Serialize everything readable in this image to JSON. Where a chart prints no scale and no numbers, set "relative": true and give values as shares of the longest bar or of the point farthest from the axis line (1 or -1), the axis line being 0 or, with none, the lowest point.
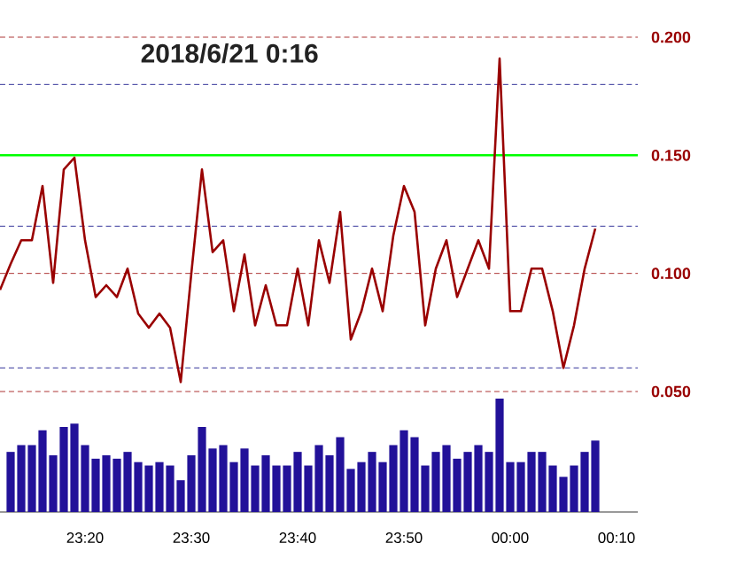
{
  "chart_data": [
    {
      "type": "line",
      "title": "2018/6/21   0:16",
      "color": "#990000",
      "x": [
        "2018-06-20T23:12",
        "2018-06-20T23:13",
        "2018-06-20T23:14",
        "2018-06-20T23:15",
        "2018-06-20T23:16",
        "2018-06-20T23:17",
        "2018-06-20T23:18",
        "2018-06-20T23:19",
        "2018-06-20T23:20",
        "2018-06-20T23:21",
        "2018-06-20T23:22",
        "2018-06-20T23:23",
        "2018-06-20T23:24",
        "2018-06-20T23:25",
        "2018-06-20T23:26",
        "2018-06-20T23:27",
        "2018-06-20T23:28",
        "2018-06-20T23:29",
        "2018-06-20T23:30",
        "2018-06-20T23:31",
        "2018-06-20T23:32",
        "2018-06-20T23:33",
        "2018-06-20T23:34",
        "2018-06-20T23:35",
        "2018-06-20T23:36",
        "2018-06-20T23:37",
        "2018-06-20T23:38",
        "2018-06-20T23:39",
        "2018-06-20T23:40",
        "2018-06-20T23:41",
        "2018-06-20T23:42",
        "2018-06-20T23:43",
        "2018-06-20T23:44",
        "2018-06-20T23:45",
        "2018-06-20T23:46",
        "2018-06-20T23:47",
        "2018-06-20T23:48",
        "2018-06-20T23:49",
        "2018-06-20T23:50",
        "2018-06-20T23:51",
        "2018-06-20T23:52",
        "2018-06-20T23:53",
        "2018-06-20T23:54",
        "2018-06-20T23:55",
        "2018-06-20T23:56",
        "2018-06-20T23:57",
        "2018-06-20T23:58",
        "2018-06-20T23:59",
        "2018-06-21T00:00",
        "2018-06-21T00:01",
        "2018-06-21T00:02",
        "2018-06-21T00:03",
        "2018-06-21T00:04",
        "2018-06-21T00:05",
        "2018-06-21T00:06",
        "2018-06-21T00:07",
        "2018-06-21T00:08"
      ],
      "values": [
        0.093,
        0.104,
        0.114,
        0.114,
        0.137,
        0.096,
        0.144,
        0.149,
        0.114,
        0.09,
        0.095,
        0.09,
        0.102,
        0.083,
        0.077,
        0.083,
        0.077,
        0.054,
        0.1,
        0.144,
        0.109,
        0.114,
        0.084,
        0.108,
        0.078,
        0.095,
        0.078,
        0.078,
        0.102,
        0.078,
        0.114,
        0.096,
        0.126,
        0.072,
        0.084,
        0.102,
        0.084,
        0.116,
        0.137,
        0.126,
        0.078,
        0.102,
        0.114,
        0.09,
        0.102,
        0.114,
        0.102,
        0.191,
        0.084,
        0.084,
        0.102,
        0.102,
        0.084,
        0.06,
        0.078,
        0.102,
        0.119
      ],
      "xlim": [
        "2018-06-20T23:12",
        "2018-06-21T00:12"
      ],
      "ylim": [
        0.05,
        0.2
      ],
      "yticks": [
        {
          "value": 0.05,
          "label": "0.050"
        },
        {
          "value": 0.1,
          "label": "0.100"
        },
        {
          "value": 0.15,
          "label": "0.150"
        },
        {
          "value": 0.2,
          "label": "0.200"
        }
      ],
      "grid": "y",
      "tick_labels": "y",
      "ref_lines": [
        {
          "axis": "y",
          "value": 0.15,
          "color": "#00ff00"
        },
        {
          "axis": "y",
          "value": 0.18,
          "color": "#000080",
          "line_style": "dashed"
        },
        {
          "axis": "y",
          "value": 0.12,
          "color": "#000080",
          "line_style": "dashed"
        },
        {
          "axis": "y",
          "value": 0.06,
          "color": "#000080",
          "line_style": "dashed"
        }
      ]
    },
    {
      "type": "bar",
      "relative": true,
      "color": "#221199",
      "x": [
        "2018-06-20T23:13",
        "2018-06-20T23:14",
        "2018-06-20T23:15",
        "2018-06-20T23:16",
        "2018-06-20T23:17",
        "2018-06-20T23:18",
        "2018-06-20T23:19",
        "2018-06-20T23:20",
        "2018-06-20T23:21",
        "2018-06-20T23:22",
        "2018-06-20T23:23",
        "2018-06-20T23:24",
        "2018-06-20T23:25",
        "2018-06-20T23:26",
        "2018-06-20T23:27",
        "2018-06-20T23:28",
        "2018-06-20T23:29",
        "2018-06-20T23:30",
        "2018-06-20T23:31",
        "2018-06-20T23:32",
        "2018-06-20T23:33",
        "2018-06-20T23:34",
        "2018-06-20T23:35",
        "2018-06-20T23:36",
        "2018-06-20T23:37",
        "2018-06-20T23:38",
        "2018-06-20T23:39",
        "2018-06-20T23:40",
        "2018-06-20T23:41",
        "2018-06-20T23:42",
        "2018-06-20T23:43",
        "2018-06-20T23:44",
        "2018-06-20T23:45",
        "2018-06-20T23:46",
        "2018-06-20T23:47",
        "2018-06-20T23:48",
        "2018-06-20T23:49",
        "2018-06-20T23:50",
        "2018-06-20T23:51",
        "2018-06-20T23:52",
        "2018-06-20T23:53",
        "2018-06-20T23:54",
        "2018-06-20T23:55",
        "2018-06-20T23:56",
        "2018-06-20T23:57",
        "2018-06-20T23:58",
        "2018-06-20T23:59",
        "2018-06-21T00:00",
        "2018-06-21T00:01",
        "2018-06-21T00:02",
        "2018-06-21T00:03",
        "2018-06-21T00:04",
        "2018-06-21T00:05",
        "2018-06-21T00:06",
        "2018-06-21T00:07",
        "2018-06-21T00:08"
      ],
      "values": [
        0.53,
        0.59,
        0.59,
        0.72,
        0.5,
        0.75,
        0.78,
        0.59,
        0.47,
        0.5,
        0.47,
        0.53,
        0.44,
        0.41,
        0.44,
        0.41,
        0.28,
        0.5,
        0.75,
        0.56,
        0.59,
        0.44,
        0.56,
        0.41,
        0.5,
        0.41,
        0.41,
        0.53,
        0.41,
        0.59,
        0.5,
        0.66,
        0.38,
        0.44,
        0.53,
        0.44,
        0.59,
        0.72,
        0.66,
        0.41,
        0.53,
        0.59,
        0.47,
        0.53,
        0.59,
        0.53,
        1,
        0.44,
        0.44,
        0.53,
        0.53,
        0.41,
        0.31,
        0.41,
        0.53,
        0.63
      ],
      "xlim": [
        "2018-06-20T23:12",
        "2018-06-21T00:12"
      ],
      "xticks": [
        {
          "value": "2018-06-20T23:20",
          "label": "23:20"
        },
        {
          "value": "2018-06-20T23:30",
          "label": "23:30"
        },
        {
          "value": "2018-06-20T23:40",
          "label": "23:40"
        },
        {
          "value": "2018-06-20T23:50",
          "label": "23:50"
        },
        {
          "value": "2018-06-21T00:00",
          "label": "00:00"
        },
        {
          "value": "2018-06-21T00:10",
          "label": "00:10"
        }
      ],
      "tick_labels": "x"
    }
  ]
}
